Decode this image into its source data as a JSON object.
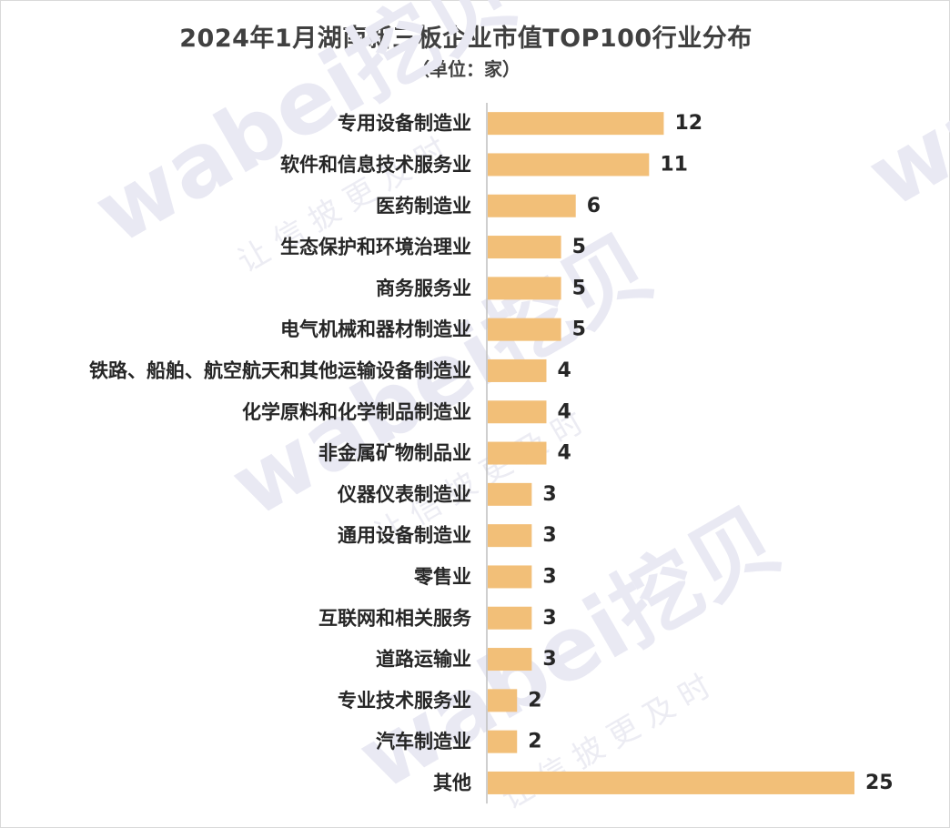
{
  "chart_data": {
    "type": "bar",
    "orientation": "horizontal",
    "title": "2024年1月湖南新三板企业市值TOP100行业分布",
    "subtitle": "（单位：家）",
    "categories": [
      "专用设备制造业",
      "软件和信息技术服务业",
      "医药制造业",
      "生态保护和环境治理业",
      "商务服务业",
      "电气机械和器材制造业",
      "铁路、船舶、航空航天和其他运输设备制造业",
      "化学原料和化学制品制造业",
      "非金属矿物制品业",
      "仪器仪表制造业",
      "通用设备制造业",
      "零售业",
      "互联网和相关服务",
      "道路运输业",
      "专业技术服务业",
      "汽车制造业",
      "其他"
    ],
    "values": [
      12,
      11,
      6,
      5,
      5,
      5,
      4,
      4,
      4,
      3,
      3,
      3,
      3,
      3,
      2,
      2,
      25
    ],
    "xlim": [
      0,
      25
    ],
    "grid": false,
    "legend": "none",
    "bar_color": "#f2bf78",
    "axis_color": "#bfbfbf"
  }
}
